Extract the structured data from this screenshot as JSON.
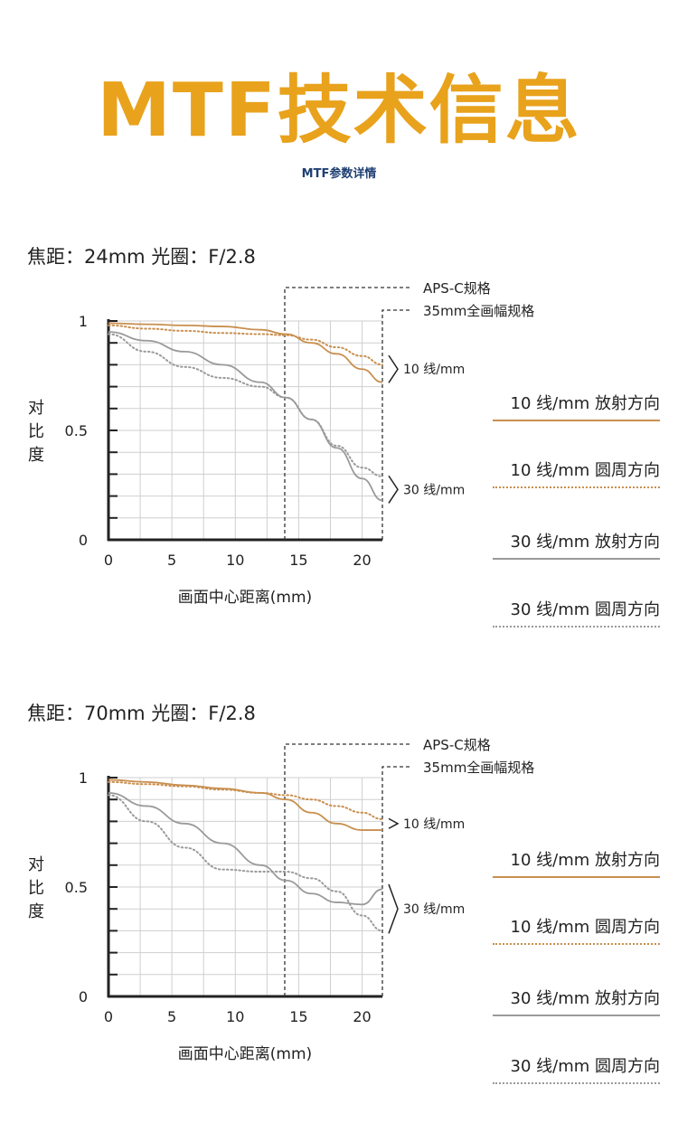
{
  "header": {
    "title": "MTF技术信息",
    "subtitle": "MTF参数详情"
  },
  "colors": {
    "title": "#e8a21c",
    "subtitle": "#1f3f73",
    "radial_10": "#c98f4f",
    "sagittal_10": "#c98f4f",
    "radial_30": "#9a9a9a",
    "sagittal_30": "#9a9a9a",
    "grid": "#cfcfcf",
    "axis": "#222222"
  },
  "legend": [
    {
      "label": "10 线/mm  放射方向",
      "style": "solid",
      "color": "#c98f4f"
    },
    {
      "label": "10 线/mm  圆周方向",
      "style": "dotted",
      "color": "#c98f4f"
    },
    {
      "label": "30 线/mm  放射方向",
      "style": "solid",
      "color": "#9a9a9a"
    },
    {
      "label": "30 线/mm  圆周方向",
      "style": "dotted",
      "color": "#9a9a9a"
    }
  ],
  "chart_data": [
    {
      "type": "line",
      "heading": "焦距：24mm  光圈：F/2.8",
      "xlabel": "画面中心距离(mm)",
      "ylabel": "对比度",
      "xlim": [
        0,
        21.6
      ],
      "ylim": [
        0,
        1
      ],
      "xticks": [
        "0",
        "5",
        "10",
        "15",
        "20"
      ],
      "xtick_values": [
        0,
        5,
        10,
        15,
        20
      ],
      "yticks": [
        "0",
        "0.5",
        "1"
      ],
      "ytick_values": [
        0,
        0.5,
        1
      ],
      "markers": [
        {
          "label": "APS-C规格",
          "x": 13.9
        },
        {
          "label": "35mm全画幅规格",
          "x": 21.6
        }
      ],
      "group_labels": [
        {
          "label": "10 线/mm",
          "y_top": 0.83,
          "y_bottom": 0.73
        },
        {
          "label": "30 线/mm",
          "y_top": 0.28,
          "y_bottom": 0.18
        }
      ],
      "series": [
        {
          "name": "10 线/mm  放射方向",
          "style": "solid",
          "color": "#c98f4f",
          "x": [
            0,
            3,
            6,
            9,
            12,
            14,
            16,
            18,
            20,
            21.6
          ],
          "y": [
            0.99,
            0.985,
            0.98,
            0.975,
            0.96,
            0.94,
            0.9,
            0.85,
            0.78,
            0.72
          ]
        },
        {
          "name": "10 线/mm  圆周方向",
          "style": "dotted",
          "color": "#c98f4f",
          "x": [
            0,
            3,
            6,
            9,
            12,
            14,
            16,
            18,
            20,
            21.6
          ],
          "y": [
            0.98,
            0.965,
            0.955,
            0.945,
            0.94,
            0.935,
            0.915,
            0.88,
            0.84,
            0.8
          ]
        },
        {
          "name": "30 线/mm  放射方向",
          "style": "solid",
          "color": "#9a9a9a",
          "x": [
            0,
            3,
            6,
            9,
            12,
            14,
            16,
            18,
            20,
            21.6
          ],
          "y": [
            0.95,
            0.91,
            0.86,
            0.8,
            0.72,
            0.65,
            0.55,
            0.42,
            0.28,
            0.18
          ]
        },
        {
          "name": "30 线/mm  圆周方向",
          "style": "dotted",
          "color": "#9a9a9a",
          "x": [
            0,
            3,
            6,
            9,
            12,
            14,
            16,
            18,
            20,
            21.6
          ],
          "y": [
            0.94,
            0.86,
            0.79,
            0.74,
            0.7,
            0.65,
            0.55,
            0.43,
            0.33,
            0.29
          ]
        }
      ]
    },
    {
      "type": "line",
      "heading": "焦距：70mm  光圈：F/2.8",
      "xlabel": "画面中心距离(mm)",
      "ylabel": "对比度",
      "xlim": [
        0,
        21.6
      ],
      "ylim": [
        0,
        1
      ],
      "xticks": [
        "0",
        "5",
        "10",
        "15",
        "20"
      ],
      "xtick_values": [
        0,
        5,
        10,
        15,
        20
      ],
      "yticks": [
        "0",
        "0.5",
        "1"
      ],
      "ytick_values": [
        0,
        0.5,
        1
      ],
      "markers": [
        {
          "label": "APS-C规格",
          "x": 13.9
        },
        {
          "label": "35mm全画幅规格",
          "x": 21.6
        }
      ],
      "group_labels": [
        {
          "label": "10 线/mm",
          "y_top": 0.8,
          "y_bottom": 0.78
        },
        {
          "label": "30 线/mm",
          "y_top": 0.5,
          "y_bottom": 0.3
        }
      ],
      "series": [
        {
          "name": "10 线/mm  放射方向",
          "style": "solid",
          "color": "#c98f4f",
          "x": [
            0,
            3,
            6,
            9,
            12,
            14,
            16,
            18,
            20,
            21.6
          ],
          "y": [
            0.99,
            0.98,
            0.965,
            0.95,
            0.93,
            0.9,
            0.84,
            0.79,
            0.76,
            0.76
          ]
        },
        {
          "name": "10 线/mm  圆周方向",
          "style": "dotted",
          "color": "#c98f4f",
          "x": [
            0,
            3,
            6,
            9,
            12,
            14,
            16,
            18,
            20,
            21.6
          ],
          "y": [
            0.98,
            0.97,
            0.96,
            0.945,
            0.93,
            0.92,
            0.9,
            0.87,
            0.84,
            0.81
          ]
        },
        {
          "name": "30 线/mm  放射方向",
          "style": "solid",
          "color": "#9a9a9a",
          "x": [
            0,
            3,
            6,
            9,
            12,
            14,
            16,
            18,
            20,
            21.6
          ],
          "y": [
            0.93,
            0.87,
            0.79,
            0.7,
            0.6,
            0.53,
            0.47,
            0.43,
            0.42,
            0.49
          ]
        },
        {
          "name": "30 线/mm  圆周方向",
          "style": "dotted",
          "color": "#9a9a9a",
          "x": [
            0,
            3,
            6,
            9,
            12,
            14,
            16,
            18,
            20,
            21.6
          ],
          "y": [
            0.92,
            0.8,
            0.68,
            0.58,
            0.57,
            0.57,
            0.54,
            0.48,
            0.37,
            0.3
          ]
        }
      ]
    }
  ]
}
